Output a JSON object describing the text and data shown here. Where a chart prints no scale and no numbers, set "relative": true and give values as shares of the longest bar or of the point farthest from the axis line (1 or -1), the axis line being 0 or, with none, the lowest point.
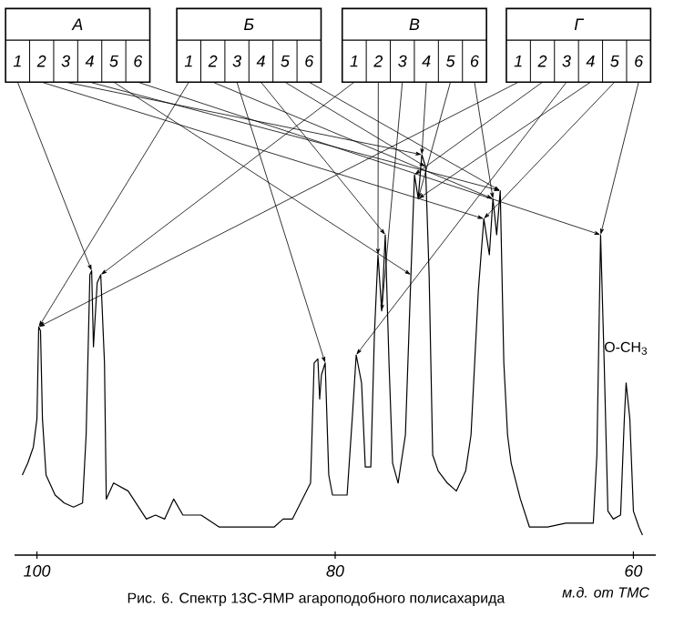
{
  "chart_data": {
    "type": "line",
    "relative": true,
    "color": "#000000",
    "xlim": [
      101.5,
      58.5
    ],
    "xticks": [
      100,
      80,
      60
    ],
    "xlabel": "м.д. от ТМС",
    "x": [
      100.98,
      100.61,
      100.24,
      100.0,
      99.88,
      99.76,
      99.63,
      99.39,
      98.78,
      98.17,
      97.55,
      96.94,
      96.7,
      96.45,
      96.33,
      96.21,
      95.96,
      95.72,
      95.47,
      95.35,
      94.86,
      93.88,
      92.66,
      92.05,
      91.44,
      90.83,
      90.21,
      88.99,
      87.77,
      86.54,
      85.32,
      84.1,
      83.49,
      82.87,
      81.65,
      81.41,
      81.16,
      81.04,
      80.92,
      80.67,
      80.43,
      80.18,
      79.82,
      79.2,
      78.84,
      78.59,
      78.23,
      77.98,
      77.61,
      77.37,
      77.13,
      76.88,
      76.64,
      76.39,
      76.15,
      75.78,
      75.29,
      74.92,
      74.68,
      74.43,
      74.19,
      73.94,
      73.7,
      73.46,
      73.09,
      72.48,
      71.87,
      71.25,
      70.89,
      70.4,
      70.03,
      69.66,
      69.42,
      69.17,
      68.93,
      68.69,
      68.44,
      68.2,
      67.58,
      66.97,
      66.36,
      65.75,
      64.53,
      63.3,
      62.69,
      62.45,
      62.2,
      61.96,
      61.71,
      61.35,
      60.86,
      60.61,
      60.49,
      60.24,
      60.0,
      59.63,
      59.39
    ],
    "values": [
      0.2,
      0.23,
      0.27,
      0.34,
      0.57,
      0.56,
      0.34,
      0.2,
      0.15,
      0.13,
      0.12,
      0.13,
      0.3,
      0.7,
      0.71,
      0.52,
      0.68,
      0.7,
      0.48,
      0.14,
      0.18,
      0.16,
      0.09,
      0.1,
      0.09,
      0.14,
      0.1,
      0.1,
      0.07,
      0.07,
      0.07,
      0.07,
      0.09,
      0.09,
      0.18,
      0.48,
      0.49,
      0.39,
      0.45,
      0.48,
      0.2,
      0.15,
      0.15,
      0.15,
      0.35,
      0.5,
      0.43,
      0.22,
      0.22,
      0.55,
      0.75,
      0.61,
      0.8,
      0.48,
      0.23,
      0.18,
      0.3,
      0.7,
      0.95,
      0.89,
      1.0,
      0.97,
      0.7,
      0.25,
      0.21,
      0.18,
      0.16,
      0.21,
      0.3,
      0.66,
      0.84,
      0.75,
      0.89,
      0.8,
      0.91,
      0.48,
      0.3,
      0.23,
      0.14,
      0.07,
      0.07,
      0.07,
      0.08,
      0.08,
      0.08,
      0.25,
      0.8,
      0.48,
      0.11,
      0.09,
      0.1,
      0.34,
      0.43,
      0.34,
      0.11,
      0.07,
      0.05
    ],
    "annotations": [
      "А",
      {
        "text": "1",
        "x": 96.33,
        "y": 0.71
      },
      {
        "text": "2",
        "x": 70.03,
        "y": 0.84
      },
      {
        "text": "3",
        "x": 74.19,
        "y": 1.0
      },
      {
        "text": "4",
        "x": 68.93,
        "y": 0.91
      },
      {
        "text": "5",
        "x": 74.92,
        "y": 0.7
      },
      {
        "text": "6",
        "x": 62.2,
        "y": 0.8
      },
      "Б",
      {
        "text": "1",
        "x": 99.88,
        "y": 0.57
      },
      {
        "text": "2",
        "x": 69.42,
        "y": 0.89
      },
      {
        "text": "3",
        "x": 80.67,
        "y": 0.48
      },
      {
        "text": "4",
        "x": 76.64,
        "y": 0.8
      },
      {
        "text": "5",
        "x": 73.94,
        "y": 0.97
      },
      {
        "text": "6",
        "x": 68.93,
        "y": 0.91
      },
      "В",
      {
        "text": "1",
        "x": 95.72,
        "y": 0.7
      },
      {
        "text": "2",
        "x": 77.13,
        "y": 0.75
      },
      {
        "text": "3",
        "x": 76.88,
        "y": 0.61
      },
      {
        "text": "4",
        "x": 74.19,
        "y": 1.0
      },
      {
        "text": "5",
        "x": 74.43,
        "y": 0.89
      },
      {
        "text": "6",
        "x": 69.42,
        "y": 0.89
      },
      "Г",
      {
        "text": "1",
        "x": 99.88,
        "y": 0.57
      },
      {
        "text": "2",
        "x": 74.68,
        "y": 0.95
      },
      {
        "text": "3",
        "x": 78.59,
        "y": 0.5
      },
      {
        "text": "4",
        "x": 74.43,
        "y": 0.89
      },
      {
        "text": "5",
        "x": 70.03,
        "y": 0.84
      },
      {
        "text": "6",
        "x": 62.2,
        "y": 0.8
      },
      {
        "text": "O-CH$_{3}$",
        "x": 60.49,
        "y": 0.43
      },
      "Рис. 6. Спектр 13С-ЯМР агароподобного полисахарида"
    ]
  }
}
